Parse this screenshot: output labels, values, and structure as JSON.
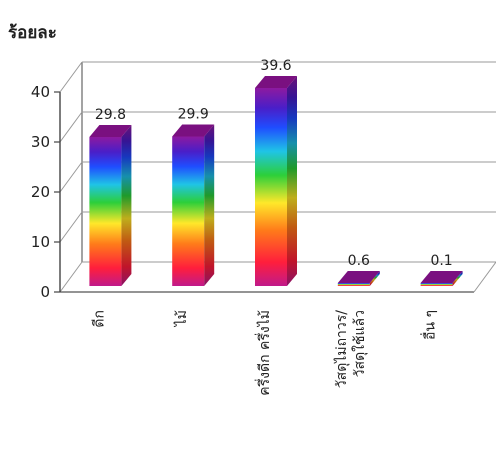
{
  "chart_data": {
    "type": "bar",
    "ylabel": "ร้อยละ",
    "ylim": [
      0,
      40
    ],
    "yticks": [
      "0",
      "10",
      "20",
      "30",
      "40"
    ],
    "grid": true,
    "categories": [
      "ดีก",
      "ไม้",
      "ครึ่งดีก ครึ่งไม้",
      "วัสดุไม่ถาวร/ วัสดุใช้แล้ว",
      "อื่น ๆ"
    ],
    "values": [
      29.8,
      29.9,
      39.6,
      0.6,
      0.1
    ],
    "data_labels": [
      "29.8",
      "29.9",
      "39.6",
      "0.6",
      "0.1"
    ],
    "colors": {
      "bar_top": "#7a1080",
      "bar_side": "#8a2090",
      "gradient": [
        "#c02090",
        "#ff2040",
        "#ff8020",
        "#ffee30",
        "#30d040",
        "#20c0e0",
        "#2050ff",
        "#5020c0",
        "#9020a0"
      ]
    }
  }
}
